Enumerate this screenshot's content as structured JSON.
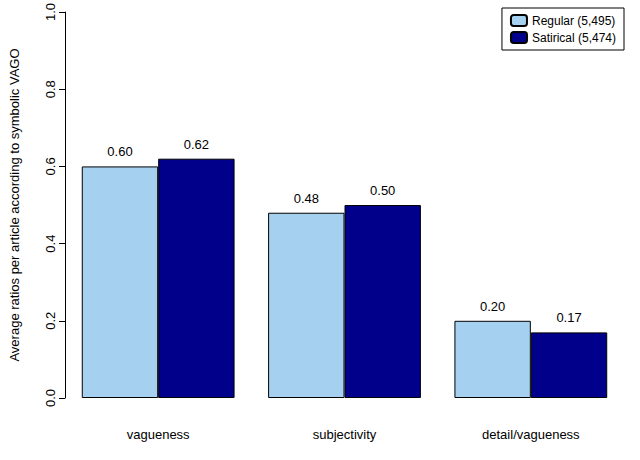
{
  "chart_data": {
    "type": "bar",
    "y_label": "Average ratios per article according to symbolic VAGO",
    "categories": [
      "vagueness",
      "subjectivity",
      "detail/vagueness"
    ],
    "series": [
      {
        "name": "Regular (5,495)",
        "color": "#a6d0f0",
        "values": [
          0.6,
          0.48,
          0.2
        ],
        "value_labels": [
          "0.60",
          "0.48",
          "0.20"
        ]
      },
      {
        "name": "Satirical (5,474)",
        "color": "#00008b",
        "values": [
          0.62,
          0.5,
          0.17
        ],
        "value_labels": [
          "0.62",
          "0.50",
          "0.17"
        ]
      }
    ],
    "ylim": [
      0,
      1
    ],
    "yticks": [
      {
        "value": 0,
        "label": "0.0"
      },
      {
        "value": 0.2,
        "label": "0.2"
      },
      {
        "value": 0.4,
        "label": "0.4"
      },
      {
        "value": 0.6,
        "label": "0.6"
      },
      {
        "value": 0.8,
        "label": "0.8"
      },
      {
        "value": 1,
        "label": "1.0"
      }
    ],
    "grid": false,
    "legend": "top-right",
    "data_labels": true
  }
}
